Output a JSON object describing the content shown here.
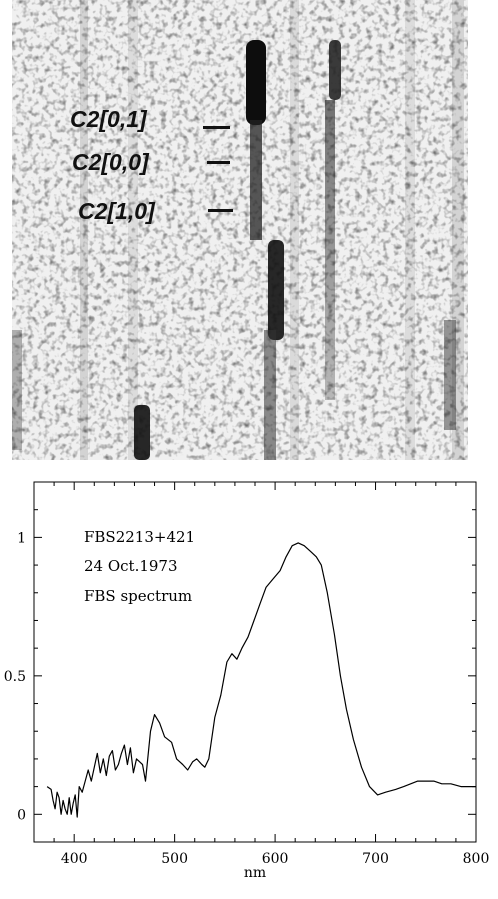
{
  "spectrogram": {
    "band_labels": [
      "C2[0,1]",
      "C2[0,0]",
      "C2[1,0]"
    ]
  },
  "chart_data": {
    "type": "line",
    "title": "",
    "xlabel": "nm",
    "ylabel": "",
    "xlim": [
      360,
      800
    ],
    "ylim": [
      -0.1,
      1.2
    ],
    "x_ticks": [
      400,
      500,
      600,
      700,
      800
    ],
    "y_ticks": [
      0,
      0.5,
      1
    ],
    "y_tick_labels": [
      "0",
      "0.5",
      "1"
    ],
    "annotations": [
      "FBS2213+421",
      "24 Oct.1973",
      "FBS spectrum"
    ],
    "line_color": "#000000",
    "series": [
      {
        "x": [
          373,
          377,
          379,
          381,
          383,
          385,
          387,
          389,
          391,
          393,
          395,
          397,
          399,
          401,
          403,
          405,
          408,
          411,
          414,
          417,
          420,
          423,
          426,
          429,
          432,
          435,
          438,
          441,
          444,
          447,
          450,
          453,
          456,
          459,
          462,
          465,
          468,
          471,
          476,
          480,
          485,
          490,
          497,
          502,
          508,
          513,
          518,
          522,
          527,
          530,
          534,
          540,
          546,
          552,
          557,
          562,
          567,
          573,
          579,
          585,
          591,
          598,
          605,
          611,
          617,
          623,
          629,
          635,
          641,
          646,
          652,
          659,
          665,
          671,
          678,
          686,
          694,
          702,
          710,
          720,
          728,
          735,
          742,
          750,
          758,
          766,
          775,
          785,
          795,
          800
        ],
        "y": [
          0.1,
          0.09,
          0.05,
          0.02,
          0.08,
          0.06,
          0.0,
          0.05,
          0.02,
          0.0,
          0.06,
          0.0,
          0.04,
          0.07,
          -0.01,
          0.1,
          0.08,
          0.12,
          0.16,
          0.12,
          0.17,
          0.22,
          0.15,
          0.2,
          0.14,
          0.21,
          0.23,
          0.16,
          0.18,
          0.22,
          0.25,
          0.18,
          0.24,
          0.15,
          0.2,
          0.19,
          0.18,
          0.12,
          0.3,
          0.36,
          0.33,
          0.28,
          0.26,
          0.2,
          0.18,
          0.16,
          0.19,
          0.2,
          0.18,
          0.17,
          0.2,
          0.35,
          0.43,
          0.55,
          0.58,
          0.56,
          0.6,
          0.64,
          0.7,
          0.76,
          0.82,
          0.85,
          0.88,
          0.93,
          0.97,
          0.98,
          0.97,
          0.95,
          0.93,
          0.9,
          0.8,
          0.65,
          0.5,
          0.38,
          0.27,
          0.17,
          0.1,
          0.07,
          0.08,
          0.09,
          0.1,
          0.11,
          0.12,
          0.12,
          0.12,
          0.11,
          0.11,
          0.1,
          0.1,
          0.1
        ]
      }
    ]
  }
}
